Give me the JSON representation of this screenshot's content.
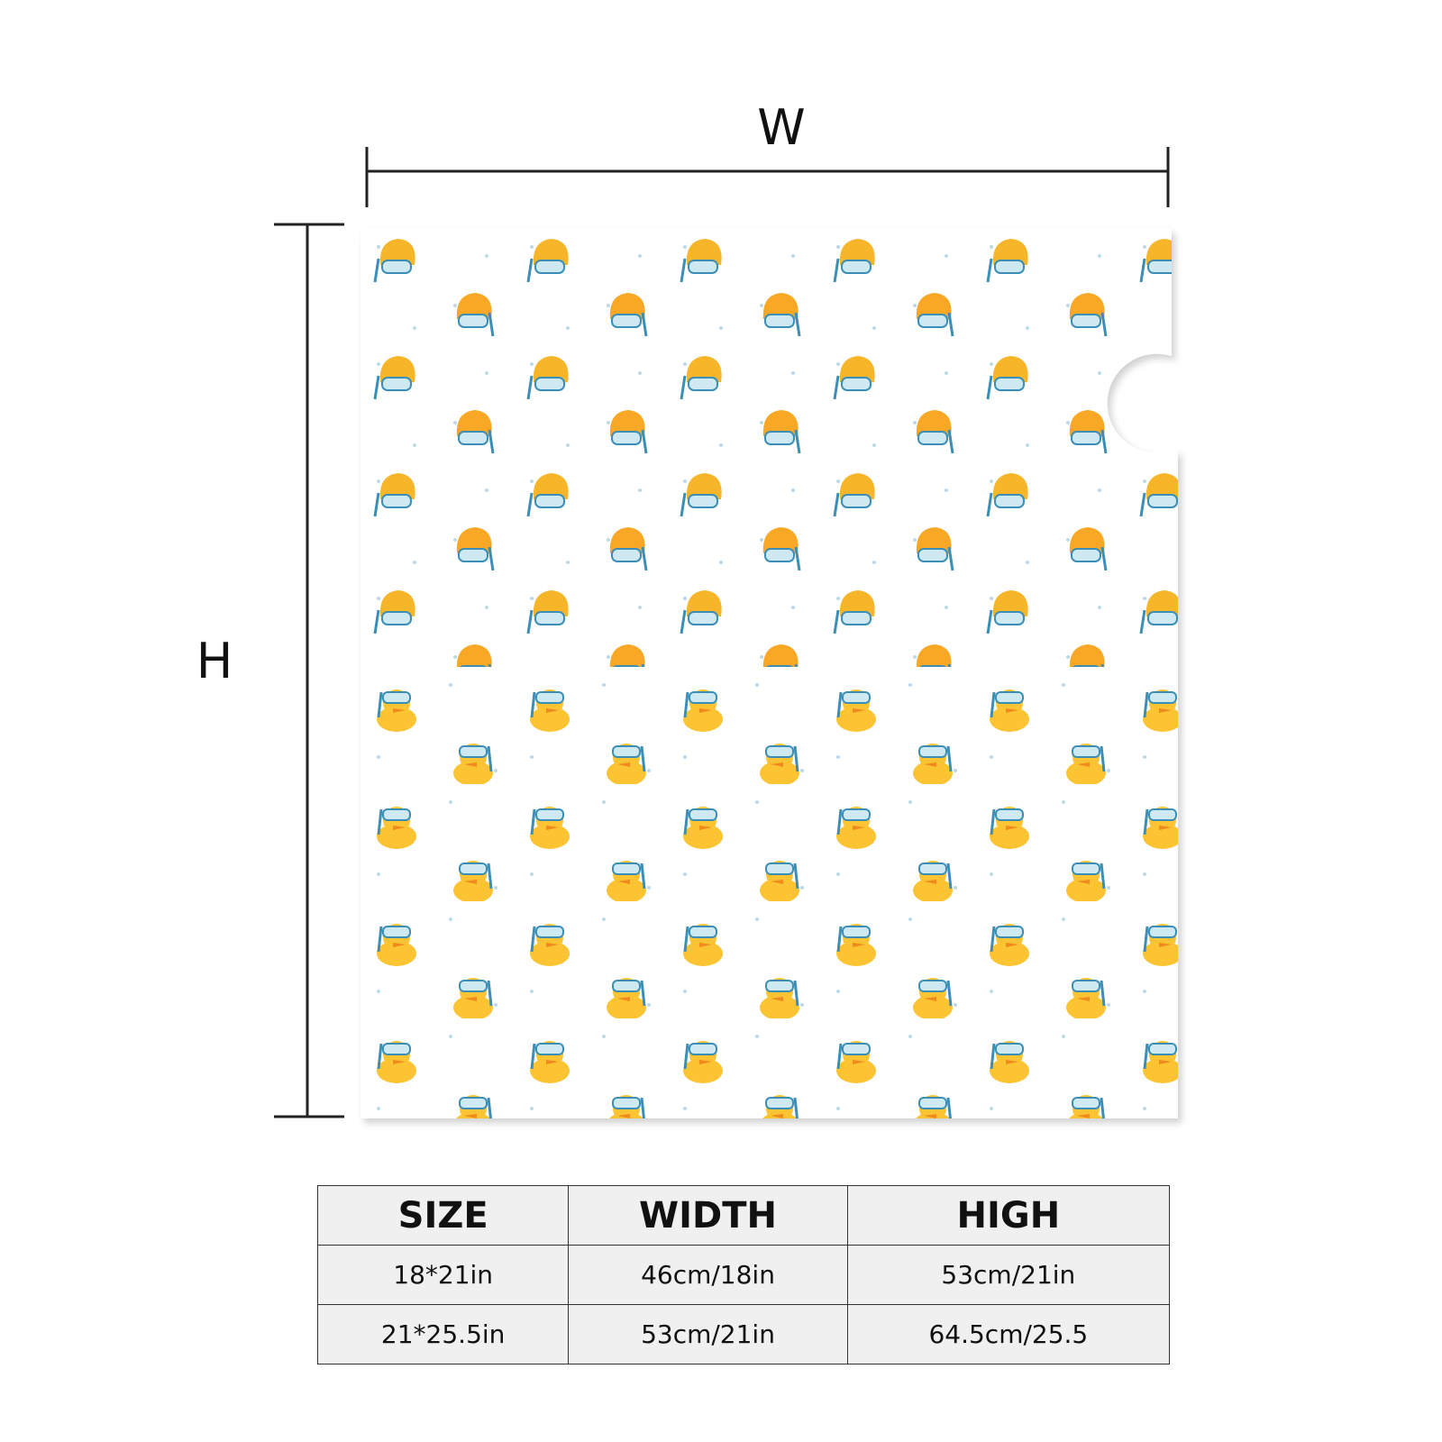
{
  "dimensions": {
    "width_label": "W",
    "height_label": "H"
  },
  "table": {
    "header": [
      "SIZE",
      "WIDTH",
      "HIGH"
    ],
    "rows": [
      [
        "18*21in",
        "46cm/18in",
        "53cm/21in"
      ],
      [
        "21*25.5in",
        "53cm/21in",
        "64.5cm/25.5"
      ]
    ]
  }
}
